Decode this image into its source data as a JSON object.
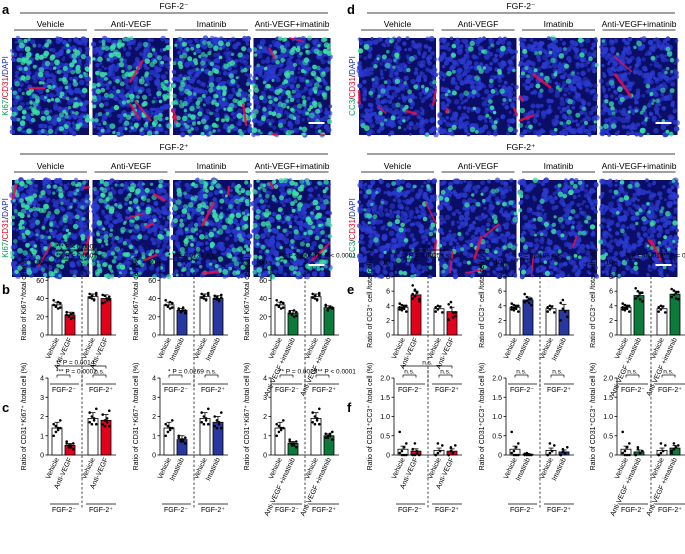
{
  "figure": {
    "panel_letters": [
      "a",
      "b",
      "c",
      "d",
      "e",
      "f"
    ],
    "conditions": [
      "Vehicle",
      "Anti-VEGF",
      "Imatinib",
      "Anti-VEGF+imatinib"
    ],
    "group_neg": "FGF-2⁻",
    "group_pos": "FGF-2⁺",
    "stain_a": [
      {
        "text": "Ki67",
        "color": "#00a651"
      },
      {
        "text": "/",
        "color": "#000000"
      },
      {
        "text": "CD31",
        "color": "#e6001f"
      },
      {
        "text": "/",
        "color": "#000000"
      },
      {
        "text": "DAPI",
        "color": "#1c2fb5"
      }
    ],
    "stain_d": [
      {
        "text": "CC3",
        "color": "#00a651"
      },
      {
        "text": "/",
        "color": "#000000"
      },
      {
        "text": "CD31",
        "color": "#e6001f"
      },
      {
        "text": "/",
        "color": "#000000"
      },
      {
        "text": "DAPI",
        "color": "#1c2fb5"
      }
    ],
    "colors": {
      "vehicle": "#ffffff",
      "antivegf": "#e3001b",
      "imatinib": "#2838a0",
      "combo": "#0c7a3a",
      "pos_fill": "#ffffff",
      "tissue_bg": "#0a0e66",
      "nuclei": "#2b3ad0",
      "ki67": "#39e0a4",
      "cd31": "#e8104a"
    }
  },
  "chart_data": [
    {
      "id": "b1",
      "type": "bar",
      "ylabel": "Ratio of Ki67⁺/total cell (%)",
      "ylim": [
        0,
        80
      ],
      "yticks": [
        "0",
        "20",
        "40",
        "60",
        "80"
      ],
      "categories": [
        "Vehicle",
        "Anti-VEGF",
        "Vehicle",
        "Anti-VEGF"
      ],
      "colors": [
        "vehicle",
        "antivegf",
        "pos_fill",
        "antivegf"
      ],
      "values": [
        33,
        22,
        42,
        40
      ],
      "errors": [
        3,
        3,
        3,
        4
      ],
      "points": [
        [
          38,
          32,
          29,
          35,
          33,
          31,
          36,
          30
        ],
        [
          25,
          20,
          18,
          24,
          22,
          21,
          23,
          19
        ],
        [
          45,
          40,
          38,
          44,
          41,
          43,
          39,
          46
        ],
        [
          44,
          36,
          38,
          42,
          35,
          43,
          40,
          39
        ]
      ],
      "groups": [
        "FGF-2⁻",
        "FGF-2⁺"
      ],
      "annotations": [
        {
          "t": "*** P < 0.0001",
          "a": 0,
          "b": 3,
          "lvl": 2
        },
        {
          "t": "*** P < 0.0001",
          "a": 0,
          "b": 1,
          "lvl": 1
        },
        {
          "t": "n.s.",
          "a": 2,
          "b": 3,
          "lvl": 1,
          "ns": true
        }
      ]
    },
    {
      "id": "b2",
      "type": "bar",
      "ylabel": "Ratio of Ki67⁺/total cell (%)",
      "ylim": [
        0,
        80
      ],
      "yticks": [
        "0",
        "20",
        "40",
        "60",
        "80"
      ],
      "categories": [
        "Vehicle",
        "Imatinib",
        "Vehicle",
        "Imatinib"
      ],
      "colors": [
        "vehicle",
        "imatinib",
        "pos_fill",
        "imatinib"
      ],
      "values": [
        33,
        27,
        42,
        40
      ],
      "errors": [
        3,
        2,
        3,
        3
      ],
      "points": [
        [
          38,
          32,
          29,
          35,
          33,
          31,
          36,
          30
        ],
        [
          29,
          25,
          27,
          24,
          28,
          26,
          30,
          27
        ],
        [
          45,
          40,
          38,
          44,
          41,
          43,
          39,
          46
        ],
        [
          43,
          39,
          37,
          41,
          40,
          42,
          38,
          44
        ]
      ],
      "groups": [
        "FGF-2⁻",
        "FGF-2⁺"
      ],
      "annotations": [
        {
          "t": "* P = 0.0134",
          "a": 0,
          "b": 1,
          "lvl": 1
        },
        {
          "t": "n.s.",
          "a": 2,
          "b": 3,
          "lvl": 1,
          "ns": true
        }
      ]
    },
    {
      "id": "b3",
      "type": "bar",
      "ylabel": "Ratio of Ki67⁺/total cell (%)",
      "ylim": [
        0,
        80
      ],
      "yticks": [
        "0",
        "20",
        "40",
        "60",
        "80"
      ],
      "categories": [
        "Vehicle",
        "Anti-VEGF +imatinib",
        "Vehicle",
        "Anti-VEGF +imatinib"
      ],
      "colors": [
        "vehicle",
        "combo",
        "pos_fill",
        "combo"
      ],
      "values": [
        33,
        24,
        42,
        30
      ],
      "errors": [
        3,
        3,
        3,
        2
      ],
      "points": [
        [
          38,
          32,
          29,
          35,
          33,
          31,
          36,
          30
        ],
        [
          26,
          22,
          20,
          25,
          24,
          23,
          27,
          21
        ],
        [
          45,
          40,
          38,
          44,
          41,
          43,
          39,
          46
        ],
        [
          32,
          28,
          31,
          29,
          33,
          27,
          30,
          30
        ]
      ],
      "groups": [
        "FGF-2⁻",
        "FGF-2⁺"
      ],
      "annotations": [
        {
          "t": "*** P < 0.0001",
          "a": 0,
          "b": 1,
          "lvl": 1
        },
        {
          "t": "*** P < 0.0001",
          "a": 2,
          "b": 3,
          "lvl": 1
        }
      ]
    },
    {
      "id": "c1",
      "type": "bar",
      "ylabel": "Ratio of CD31⁺Ki67⁺ /total cell (%)",
      "ylim": [
        0,
        4
      ],
      "yticks": [
        "0",
        "1",
        "2",
        "3",
        "4"
      ],
      "categories": [
        "Vehicle",
        "Anti-VEGF",
        "Vehicle",
        "Anti-VEGF"
      ],
      "colors": [
        "vehicle",
        "antivegf",
        "pos_fill",
        "antivegf"
      ],
      "values": [
        1.4,
        0.5,
        1.9,
        1.8
      ],
      "errors": [
        0.3,
        0.1,
        0.3,
        0.3
      ],
      "points": [
        [
          1.6,
          1.2,
          1.4,
          1.8,
          1.0,
          1.5,
          1.3,
          1.4
        ],
        [
          0.6,
          0.4,
          0.5,
          0.3,
          0.7,
          0.5,
          0.4,
          0.6
        ],
        [
          2.2,
          1.6,
          1.9,
          2.4,
          1.7,
          2.0,
          1.8,
          1.6
        ],
        [
          2.1,
          1.5,
          1.9,
          2.3,
          1.6,
          1.8,
          1.7,
          1.5
        ]
      ],
      "groups": [
        "FGF-2⁻",
        "FGF-2⁺"
      ],
      "annotations": [
        {
          "t": "** P = 0.0014",
          "a": 0,
          "b": 3,
          "lvl": 2
        },
        {
          "t": "*** P = 0.0002",
          "a": 0,
          "b": 1,
          "lvl": 1
        },
        {
          "t": "n.s.",
          "a": 2,
          "b": 3,
          "lvl": 1,
          "ns": true
        }
      ]
    },
    {
      "id": "c2",
      "type": "bar",
      "ylabel": "Ratio of CD31⁺Ki67⁺ /total cell (%)",
      "ylim": [
        0,
        4
      ],
      "yticks": [
        "0",
        "1",
        "2",
        "3",
        "4"
      ],
      "categories": [
        "Vehicle",
        "Imatinib",
        "Vehicle",
        "Imatinib"
      ],
      "colors": [
        "vehicle",
        "imatinib",
        "pos_fill",
        "imatinib"
      ],
      "values": [
        1.4,
        0.8,
        1.9,
        1.7
      ],
      "errors": [
        0.3,
        0.2,
        0.3,
        0.3
      ],
      "points": [
        [
          1.6,
          1.2,
          1.4,
          1.8,
          1.0,
          1.5,
          1.3,
          1.4
        ],
        [
          0.9,
          0.7,
          0.8,
          0.6,
          1.0,
          0.8,
          0.7,
          0.9
        ],
        [
          2.2,
          1.6,
          1.9,
          2.4,
          1.7,
          2.0,
          1.8,
          1.6
        ],
        [
          2.0,
          1.4,
          1.7,
          2.2,
          1.5,
          1.8,
          1.6,
          1.4
        ]
      ],
      "groups": [
        "FGF-2⁻",
        "FGF-2⁺"
      ],
      "annotations": [
        {
          "t": "* P = 0.0269",
          "a": 0,
          "b": 1,
          "lvl": 1
        },
        {
          "t": "n.s.",
          "a": 2,
          "b": 3,
          "lvl": 1,
          "ns": true
        }
      ]
    },
    {
      "id": "c3",
      "type": "bar",
      "ylabel": "Ratio of CD31⁺Ki67⁺ /total cell (%)",
      "ylim": [
        0,
        4
      ],
      "yticks": [
        "0",
        "1",
        "2",
        "3",
        "4"
      ],
      "categories": [
        "Vehicle",
        "Anti-VEGF +imatinib",
        "Vehicle",
        "Anti-VEGF +imatinib"
      ],
      "colors": [
        "vehicle",
        "combo",
        "pos_fill",
        "combo"
      ],
      "values": [
        1.4,
        0.6,
        1.9,
        1.0
      ],
      "errors": [
        0.3,
        0.1,
        0.3,
        0.1
      ],
      "points": [
        [
          1.6,
          1.2,
          1.4,
          1.8,
          1.0,
          1.5,
          1.3,
          1.4
        ],
        [
          0.7,
          0.5,
          0.6,
          0.4,
          0.8,
          0.6,
          0.5,
          0.7
        ],
        [
          2.2,
          1.6,
          1.9,
          2.4,
          1.7,
          2.0,
          1.8,
          1.6
        ],
        [
          1.1,
          0.9,
          1.0,
          1.2,
          0.9,
          1.0,
          1.1,
          0.8
        ]
      ],
      "groups": [
        "FGF-2⁻",
        "FGF-2⁺"
      ],
      "annotations": [
        {
          "t": "** P = 0.0025",
          "a": 0,
          "b": 1,
          "lvl": 1
        },
        {
          "t": "*** P < 0.0001",
          "a": 2,
          "b": 3,
          "lvl": 1
        }
      ]
    },
    {
      "id": "e1",
      "type": "bar",
      "ylabel": "Ratio of CC3⁺ cell /total cell (%)",
      "ylim": [
        0,
        10
      ],
      "yticks": [
        "0",
        "2",
        "4",
        "6",
        "8",
        "10"
      ],
      "categories": [
        "Vehicle",
        "Anti-VEGF",
        "Vehicle",
        "Anti-VEGF"
      ],
      "colors": [
        "vehicle",
        "antivegf",
        "pos_fill",
        "antivegf"
      ],
      "values": [
        3.8,
        5.5,
        3.6,
        3.2
      ],
      "errors": [
        0.3,
        0.5,
        0.4,
        0.6
      ],
      "points": [
        [
          3.5,
          4.1,
          3.9,
          3.2,
          4.3,
          3.7,
          3.6,
          4.0,
          3.8,
          3.4
        ],
        [
          5.0,
          6.2,
          5.8,
          4.6,
          6.8,
          5.3,
          5.9,
          4.9,
          5.6,
          6.1
        ],
        [
          3.2,
          4.0,
          3.9,
          3.1,
          3.8,
          3.5
        ],
        [
          2.1,
          4.5,
          3.0,
          2.6,
          4.2,
          3.8,
          2.4,
          3.1
        ]
      ],
      "groups": [
        "FGF-2⁻",
        "FGF-2⁺"
      ],
      "annotations": [
        {
          "t": "n.s.",
          "a": 0,
          "b": 3,
          "lvl": 2,
          "ns": true
        },
        {
          "t": "** P = 0.0025",
          "a": 0,
          "b": 1,
          "lvl": 1
        },
        {
          "t": "n.s.",
          "a": 2,
          "b": 3,
          "lvl": 1,
          "ns": true
        }
      ]
    },
    {
      "id": "e2",
      "type": "bar",
      "ylabel": "Ratio of CC3⁺ cell /total cell (%)",
      "ylim": [
        0,
        10
      ],
      "yticks": [
        "0",
        "2",
        "4",
        "6",
        "8",
        "10"
      ],
      "categories": [
        "Vehicle",
        "Imatinib",
        "Vehicle",
        "Imatinib"
      ],
      "colors": [
        "vehicle",
        "imatinib",
        "pos_fill",
        "imatinib"
      ],
      "values": [
        3.8,
        4.8,
        3.6,
        3.4
      ],
      "errors": [
        0.3,
        0.4,
        0.4,
        0.8
      ],
      "points": [
        [
          3.5,
          4.1,
          3.9,
          3.2,
          4.3,
          3.7,
          3.6,
          4.0,
          3.8,
          3.4
        ],
        [
          4.5,
          5.2,
          4.9,
          4.1,
          5.6,
          4.7,
          4.4,
          5.0
        ],
        [
          3.2,
          4.0,
          3.9,
          3.1,
          3.8,
          3.5
        ],
        [
          2.0,
          4.8,
          3.2,
          2.5,
          4.4,
          3.6
        ]
      ],
      "groups": [
        "FGF-2⁻",
        "FGF-2⁺"
      ],
      "annotations": [
        {
          "t": "* P = 0.0198",
          "a": 0,
          "b": 1,
          "lvl": 1
        },
        {
          "t": "n.s.",
          "a": 2,
          "b": 3,
          "lvl": 1,
          "ns": true
        }
      ]
    },
    {
      "id": "e3",
      "type": "bar",
      "ylabel": "Ratio of CC3⁺ cell /total cell (%)",
      "ylim": [
        0,
        10
      ],
      "yticks": [
        "0",
        "2",
        "4",
        "6",
        "8",
        "10"
      ],
      "categories": [
        "Vehicle",
        "Anti-VEGF +imatinib",
        "Vehicle",
        "Anti-VEGF +imatinib"
      ],
      "colors": [
        "vehicle",
        "combo",
        "pos_fill",
        "combo"
      ],
      "values": [
        3.8,
        5.4,
        3.6,
        5.6
      ],
      "errors": [
        0.3,
        0.5,
        0.4,
        0.4
      ],
      "points": [
        [
          3.5,
          4.1,
          3.9,
          3.2,
          4.3,
          3.7,
          3.6,
          4.0,
          3.8,
          3.4
        ],
        [
          5.0,
          6.0,
          5.7,
          4.6,
          6.4,
          5.3,
          4.9,
          5.8
        ],
        [
          3.2,
          4.0,
          3.9,
          3.1,
          3.8,
          3.5
        ],
        [
          5.2,
          6.1,
          5.8,
          4.9,
          6.3,
          5.5,
          5.0,
          5.9
        ]
      ],
      "groups": [
        "FGF-2⁻",
        "FGF-2⁺"
      ],
      "annotations": [
        {
          "t": "** P = 0.0012",
          "a": 0,
          "b": 1,
          "lvl": 1
        },
        {
          "t": "*** P = 0.0003",
          "a": 2,
          "b": 3,
          "lvl": 1
        }
      ]
    },
    {
      "id": "f1",
      "type": "bar",
      "ylabel": "Ratio of CD31⁺CC3⁺ /total cell (%)",
      "ylim": [
        0,
        2.0
      ],
      "yticks": [
        "0",
        "0.5",
        "1.0",
        "1.5",
        "2.0"
      ],
      "categories": [
        "Vehicle",
        "Anti-VEGF",
        "Vehicle",
        "Anti-VEGF"
      ],
      "colors": [
        "vehicle",
        "antivegf",
        "pos_fill",
        "antivegf"
      ],
      "values": [
        0.15,
        0.1,
        0.12,
        0.1
      ],
      "errors": [
        0.08,
        0.06,
        0.06,
        0.06
      ],
      "points": [
        [
          0.6,
          0.1,
          0.0,
          0.3,
          0.05,
          0.0,
          0.2,
          0.0
        ],
        [
          0.0,
          0.3,
          0.05,
          0.0,
          0.15,
          0.0,
          0.1
        ],
        [
          0.0,
          0.3,
          0.1,
          0.25,
          0.0,
          0.05
        ],
        [
          0.0,
          0.2,
          0.05,
          0.25,
          0.0,
          0.1
        ]
      ],
      "groups": [
        "FGF-2⁻",
        "FGF-2⁺"
      ],
      "annotations": [
        {
          "t": "n.s.",
          "a": 0,
          "b": 3,
          "lvl": 2,
          "ns": true
        },
        {
          "t": "n.s.",
          "a": 0,
          "b": 1,
          "lvl": 1,
          "ns": true
        },
        {
          "t": "n.s.",
          "a": 2,
          "b": 3,
          "lvl": 1,
          "ns": true
        }
      ]
    },
    {
      "id": "f2",
      "type": "bar",
      "ylabel": "Ratio of CD31⁺CC3⁺ /total cell (%)",
      "ylim": [
        0,
        2.0
      ],
      "yticks": [
        "0",
        "0.5",
        "1.0",
        "1.5",
        "2.0"
      ],
      "categories": [
        "Vehicle",
        "Imatinib",
        "Vehicle",
        "Imatinib"
      ],
      "colors": [
        "vehicle",
        "imatinib",
        "pos_fill",
        "imatinib"
      ],
      "values": [
        0.15,
        0.02,
        0.12,
        0.08
      ],
      "errors": [
        0.08,
        0.02,
        0.06,
        0.05
      ],
      "points": [
        [
          0.6,
          0.1,
          0.0,
          0.3,
          0.05,
          0.0,
          0.2,
          0.0
        ],
        [
          0.0,
          0.05,
          0.0,
          0.0,
          0.03,
          0.0
        ],
        [
          0.0,
          0.3,
          0.1,
          0.25,
          0.0,
          0.05
        ],
        [
          0.0,
          0.15,
          0.05,
          0.2,
          0.0,
          0.08
        ]
      ],
      "groups": [
        "FGF-2⁻",
        "FGF-2⁺"
      ],
      "annotations": [
        {
          "t": "n.s.",
          "a": 0,
          "b": 1,
          "lvl": 1,
          "ns": true
        },
        {
          "t": "n.s.",
          "a": 2,
          "b": 3,
          "lvl": 1,
          "ns": true
        }
      ]
    },
    {
      "id": "f3",
      "type": "bar",
      "ylabel": "Ratio of CD31⁺CC3⁺ /total cell (%)",
      "ylim": [
        0,
        2.0
      ],
      "yticks": [
        "0",
        "0.5",
        "1.0",
        "1.5",
        "2.0"
      ],
      "categories": [
        "Vehicle",
        "Anti-VEGF +imatinib",
        "Vehicle",
        "Anti-VEGF +imatinib"
      ],
      "colors": [
        "vehicle",
        "combo",
        "pos_fill",
        "combo"
      ],
      "values": [
        0.15,
        0.08,
        0.12,
        0.18
      ],
      "errors": [
        0.08,
        0.05,
        0.06,
        0.07
      ],
      "points": [
        [
          0.6,
          0.1,
          0.0,
          0.3,
          0.05,
          0.0,
          0.2,
          0.0
        ],
        [
          0.0,
          0.2,
          0.05,
          0.1,
          0.0,
          0.15
        ],
        [
          0.0,
          0.3,
          0.1,
          0.25,
          0.0,
          0.05
        ],
        [
          0.1,
          0.3,
          0.2,
          0.25,
          0.05,
          0.15
        ]
      ],
      "groups": [
        "FGF-2⁻",
        "FGF-2⁺"
      ],
      "annotations": [
        {
          "t": "n.s.",
          "a": 0,
          "b": 1,
          "lvl": 1,
          "ns": true
        },
        {
          "t": "n.s.",
          "a": 2,
          "b": 3,
          "lvl": 1,
          "ns": true
        }
      ]
    }
  ]
}
